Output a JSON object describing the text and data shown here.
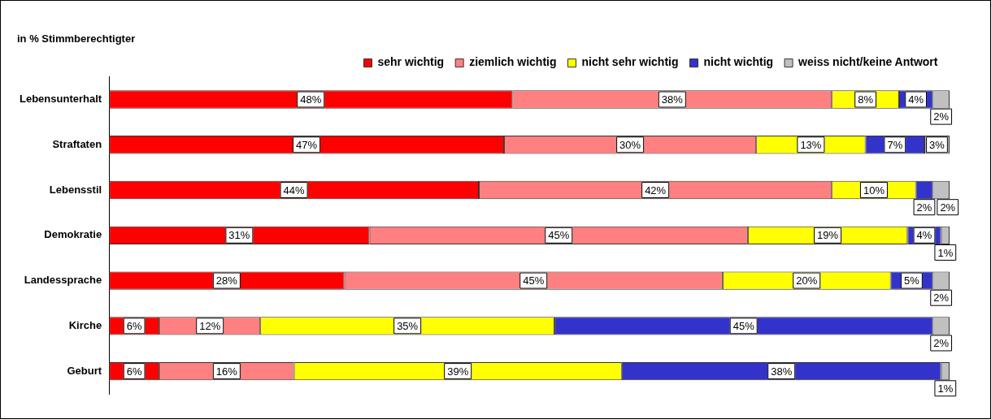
{
  "chart_data": {
    "type": "bar",
    "orientation": "horizontal",
    "stacked": true,
    "title": "in % Stimmberechtigter",
    "categories": [
      "Lebensunterhalt",
      "Straftaten",
      "Lebensstil",
      "Demokratie",
      "Landessprache",
      "Kirche",
      "Geburt"
    ],
    "series": [
      {
        "name": "sehr wichtig",
        "color": "#ff0000",
        "values": [
          48,
          47,
          44,
          31,
          28,
          6,
          6
        ],
        "value_labels": [
          "48%",
          "47%",
          "44%",
          "31%",
          "28%",
          "6%",
          "6%"
        ]
      },
      {
        "name": "ziemlich wichtig",
        "color": "#ff8080",
        "values": [
          38,
          30,
          42,
          45,
          45,
          12,
          16
        ],
        "value_labels": [
          "38%",
          "30%",
          "42%",
          "45%",
          "45%",
          "12%",
          "16%"
        ]
      },
      {
        "name": "nicht sehr wichtig",
        "color": "#ffff00",
        "values": [
          8,
          13,
          10,
          19,
          20,
          35,
          39
        ],
        "value_labels": [
          "8%",
          "13%",
          "10%",
          "19%",
          "20%",
          "35%",
          "39%"
        ]
      },
      {
        "name": "nicht wichtig",
        "color": "#3333cc",
        "values": [
          4,
          7,
          2,
          4,
          5,
          45,
          38
        ],
        "value_labels": [
          "4%",
          "7%",
          "2%",
          "4%",
          "5%",
          "45%",
          "38%"
        ]
      },
      {
        "name": "weiss nicht/keine Antwort",
        "color": "#c0c0c0",
        "values": [
          2,
          3,
          2,
          1,
          2,
          2,
          1
        ],
        "value_labels": [
          "2%",
          "3%",
          "2%",
          "1%",
          "2%",
          "2%",
          "1%"
        ]
      }
    ],
    "xlim": [
      0,
      100
    ],
    "tick_labels": "y",
    "legend": "top"
  }
}
